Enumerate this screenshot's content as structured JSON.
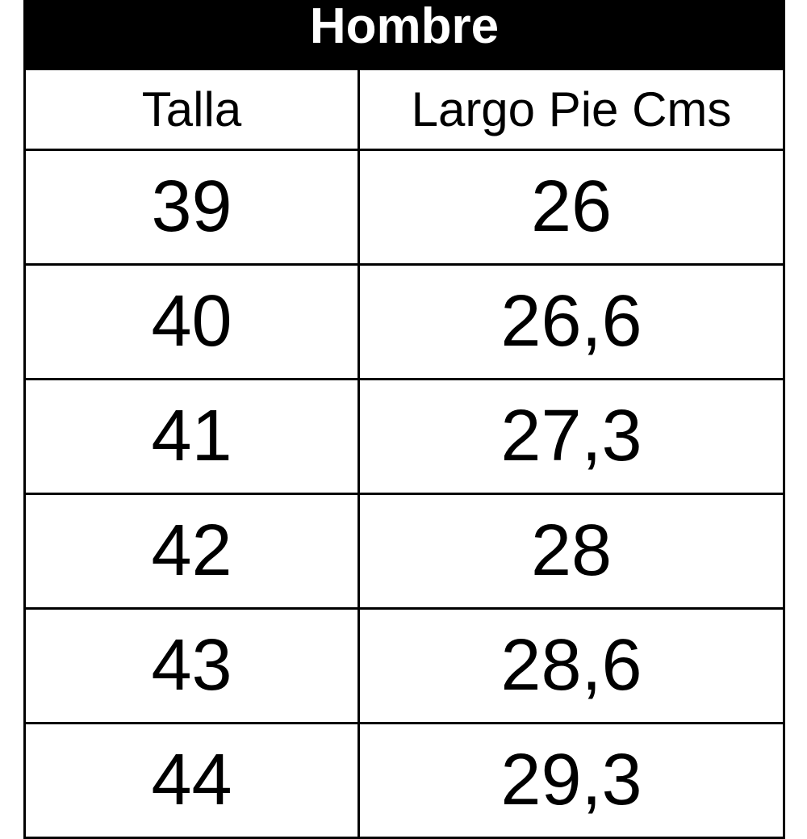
{
  "title": "Hombre",
  "columns": [
    "Talla",
    "Largo Pie Cms"
  ],
  "rows": [
    [
      "39",
      "26"
    ],
    [
      "40",
      "26,6"
    ],
    [
      "41",
      "27,3"
    ],
    [
      "42",
      "28"
    ],
    [
      "43",
      "28,6"
    ],
    [
      "44",
      "29,3"
    ]
  ]
}
